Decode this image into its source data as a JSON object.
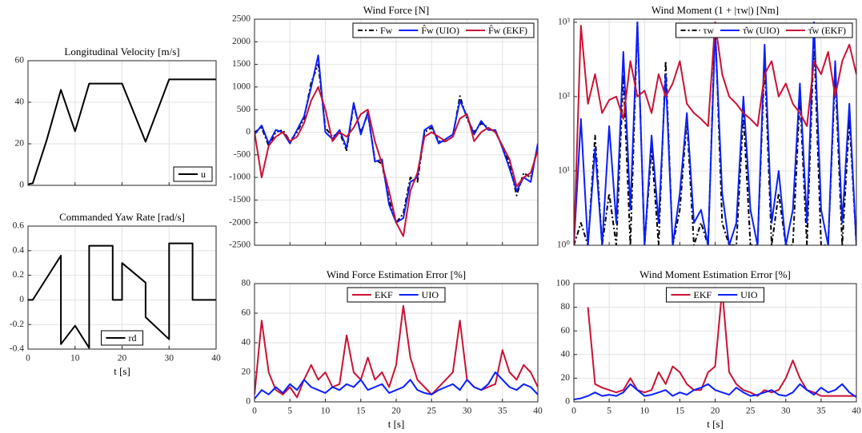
{
  "chart_data": [
    {
      "type": "line",
      "title": "Longitudinal Velocity [m/s]",
      "xlim": [
        0,
        40
      ],
      "xticks": [
        0,
        10,
        20,
        30,
        40
      ],
      "xtick_labels": false,
      "ylim": [
        0,
        60
      ],
      "yticks": [
        0,
        20,
        40,
        60
      ],
      "grid": true,
      "legend": "lower right",
      "x": [
        0,
        1,
        4,
        7,
        10,
        13,
        20,
        25,
        30,
        40
      ],
      "series": [
        {
          "name": "u",
          "color": "#000000",
          "values": [
            0.5,
            1,
            22,
            46,
            26,
            49,
            49,
            21,
            51,
            51
          ]
        }
      ]
    },
    {
      "type": "line",
      "title": "Commanded Yaw Rate [rad/s]",
      "xlabel": "t [s]",
      "xlim": [
        0,
        40
      ],
      "xticks": [
        0,
        10,
        20,
        30,
        40
      ],
      "ylim": [
        -0.4,
        0.6
      ],
      "yticks": [
        -0.4,
        -0.2,
        0,
        0.2,
        0.4,
        0.6
      ],
      "grid": true,
      "legend": "lower center",
      "x": [
        0,
        1,
        7,
        7,
        10,
        13,
        13,
        18,
        18,
        20,
        20,
        25,
        25,
        30,
        30,
        35,
        35,
        40
      ],
      "series": [
        {
          "name": "rd",
          "color": "#000000",
          "values": [
            0,
            0,
            0.36,
            -0.36,
            -0.21,
            -0.39,
            0.44,
            0.44,
            0,
            0,
            0.3,
            0.14,
            -0.14,
            -0.32,
            0.46,
            0.46,
            0,
            0
          ]
        }
      ]
    },
    {
      "type": "line",
      "title": "Wind Force [N]",
      "xlim": [
        0,
        40
      ],
      "xticks": [
        0,
        5,
        10,
        15,
        20,
        25,
        30,
        35,
        40
      ],
      "xtick_labels": false,
      "ylim": [
        -2500,
        2500
      ],
      "yticks": [
        -2500,
        -2000,
        -1500,
        -1000,
        -500,
        0,
        500,
        1000,
        1500,
        2000,
        2500
      ],
      "grid": true,
      "legend": "upper right",
      "x": [
        0,
        1,
        2,
        3,
        4,
        5,
        6,
        7,
        8,
        9,
        10,
        11,
        12,
        13,
        14,
        15,
        16,
        17,
        18,
        19,
        20,
        21,
        22,
        23,
        24,
        25,
        26,
        27,
        28,
        29,
        30,
        31,
        32,
        33,
        34,
        35,
        36,
        37,
        38,
        39,
        40
      ],
      "series": [
        {
          "name": "Fw",
          "color": "#000000",
          "dashed": true,
          "values": [
            0,
            100,
            -300,
            0,
            50,
            -200,
            0,
            300,
            1100,
            1500,
            100,
            -100,
            0,
            -400,
            600,
            0,
            400,
            -600,
            -700,
            -1500,
            -2000,
            -1800,
            -1000,
            -1100,
            0,
            100,
            -200,
            -200,
            -100,
            800,
            300,
            0,
            200,
            100,
            0,
            -300,
            -700,
            -1400,
            -900,
            -1000,
            -300
          ]
        },
        {
          "name": "F̂w (UIO)",
          "color": "#0a1fff",
          "values": [
            -50,
            150,
            -250,
            50,
            0,
            -250,
            50,
            350,
            1000,
            1700,
            0,
            -150,
            50,
            -350,
            650,
            -50,
            450,
            -650,
            -600,
            -1600,
            -2000,
            -1900,
            -1100,
            -1000,
            50,
            150,
            -250,
            -150,
            -50,
            700,
            350,
            -50,
            250,
            50,
            50,
            -350,
            -800,
            -1300,
            -1000,
            -1100,
            -250
          ]
        },
        {
          "name": "F̂w (EKF)",
          "color": "#cc1133",
          "values": [
            0,
            -1000,
            -300,
            -100,
            0,
            -200,
            -100,
            200,
            700,
            1000,
            500,
            -200,
            0,
            -100,
            100,
            400,
            500,
            -200,
            -700,
            -1300,
            -2000,
            -2300,
            -1300,
            -900,
            -100,
            0,
            -100,
            -200,
            -100,
            300,
            400,
            -200,
            0,
            100,
            0,
            -300,
            -600,
            -1200,
            -1000,
            -900,
            -400
          ]
        }
      ]
    },
    {
      "type": "line",
      "title": "Wind Moment (1 + |τw|) [Nm]",
      "log_y": true,
      "xlim": [
        0,
        40
      ],
      "xticks": [
        0,
        5,
        10,
        15,
        20,
        25,
        30,
        35,
        40
      ],
      "xtick_labels": false,
      "ylim": [
        1,
        1100
      ],
      "yticks": [
        {
          "value": 1,
          "label": "10⁰"
        },
        {
          "value": 10,
          "label": "10¹"
        },
        {
          "value": 100,
          "label": "10²"
        },
        {
          "value": 1000,
          "label": "10³"
        }
      ],
      "grid": true,
      "legend": "upper right",
      "x": [
        0,
        1,
        2,
        3,
        4,
        5,
        6,
        7,
        8,
        9,
        10,
        11,
        12,
        13,
        14,
        15,
        16,
        17,
        18,
        19,
        20,
        21,
        22,
        23,
        24,
        25,
        26,
        27,
        28,
        29,
        30,
        31,
        32,
        33,
        34,
        35,
        36,
        37,
        38,
        39,
        40
      ],
      "series": [
        {
          "name": "τw",
          "color": "#000000",
          "dashed": true,
          "values": [
            1,
            2,
            1,
            30,
            1,
            5,
            1,
            200,
            1,
            1000,
            1,
            20,
            1,
            300,
            1,
            3,
            50,
            1,
            2,
            1,
            1000,
            2,
            1,
            1,
            60,
            1,
            1,
            300,
            1,
            5,
            1,
            1,
            100,
            1,
            600,
            1,
            1,
            200,
            1,
            50,
            1
          ]
        },
        {
          "name": "τ̂w (UIO)",
          "color": "#0a1fff",
          "values": [
            1,
            50,
            1,
            20,
            1,
            40,
            2,
            400,
            3,
            1000,
            1,
            30,
            2,
            200,
            1,
            5,
            60,
            2,
            3,
            1,
            800,
            5,
            1,
            2,
            100,
            3,
            1,
            500,
            2,
            10,
            1,
            3,
            150,
            2,
            1000,
            3,
            1,
            300,
            2,
            80,
            1
          ]
        },
        {
          "name": "τ̂w (EKF)",
          "color": "#cc1133",
          "values": [
            1,
            900,
            80,
            200,
            60,
            90,
            100,
            50,
            300,
            100,
            120,
            60,
            200,
            100,
            150,
            300,
            80,
            60,
            50,
            40,
            1000,
            200,
            100,
            80,
            60,
            50,
            40,
            200,
            300,
            100,
            150,
            80,
            60,
            40,
            300,
            200,
            400,
            100,
            300,
            500,
            200
          ]
        }
      ]
    },
    {
      "type": "line",
      "title": "Wind Force Estimation Error [%]",
      "xlabel": "t [s]",
      "xlim": [
        0,
        40
      ],
      "xticks": [
        0,
        5,
        10,
        15,
        20,
        25,
        30,
        35,
        40
      ],
      "ylim": [
        0,
        80
      ],
      "yticks": [
        0,
        20,
        40,
        60,
        80
      ],
      "grid": true,
      "legend": "upper center",
      "x": [
        0,
        1,
        2,
        3,
        4,
        5,
        6,
        7,
        8,
        9,
        10,
        11,
        12,
        13,
        14,
        15,
        16,
        17,
        18,
        19,
        20,
        21,
        22,
        23,
        24,
        25,
        26,
        27,
        28,
        29,
        30,
        31,
        32,
        33,
        34,
        35,
        36,
        37,
        38,
        39,
        40
      ],
      "series": [
        {
          "name": "EKF",
          "color": "#cc1133",
          "values": [
            5,
            55,
            20,
            8,
            5,
            10,
            3,
            15,
            25,
            15,
            20,
            10,
            12,
            45,
            20,
            15,
            30,
            15,
            20,
            10,
            25,
            65,
            30,
            15,
            10,
            5,
            10,
            15,
            20,
            55,
            15,
            10,
            8,
            10,
            12,
            35,
            20,
            15,
            25,
            20,
            10
          ]
        },
        {
          "name": "UIO",
          "color": "#0a1fff",
          "values": [
            2,
            8,
            5,
            10,
            6,
            12,
            8,
            15,
            10,
            8,
            6,
            10,
            8,
            12,
            10,
            15,
            8,
            10,
            12,
            6,
            8,
            10,
            15,
            8,
            6,
            5,
            8,
            10,
            12,
            8,
            15,
            10,
            8,
            12,
            20,
            15,
            10,
            8,
            12,
            10,
            5
          ]
        }
      ]
    },
    {
      "type": "line",
      "title": "Wind Moment Estimation Error [%]",
      "xlabel": "t [s]",
      "xlim": [
        0,
        40
      ],
      "xticks": [
        0,
        5,
        10,
        15,
        20,
        25,
        30,
        35,
        40
      ],
      "ylim": [
        0,
        100
      ],
      "yticks": [
        0,
        20,
        40,
        60,
        80,
        100
      ],
      "grid": true,
      "legend": "upper center",
      "x": [
        0,
        1,
        2,
        3,
        4,
        5,
        6,
        7,
        8,
        9,
        10,
        11,
        12,
        13,
        14,
        15,
        16,
        17,
        18,
        19,
        20,
        21,
        22,
        23,
        24,
        25,
        26,
        27,
        28,
        29,
        30,
        31,
        32,
        33,
        34,
        35,
        36,
        37,
        38,
        39,
        40
      ],
      "series": [
        {
          "name": "EKF",
          "color": "#cc1133",
          "values": [
            null,
            null,
            80,
            15,
            12,
            10,
            8,
            10,
            20,
            10,
            8,
            10,
            25,
            15,
            30,
            25,
            15,
            10,
            10,
            25,
            30,
            95,
            25,
            15,
            10,
            8,
            5,
            10,
            8,
            10,
            20,
            35,
            20,
            10,
            8,
            5,
            5,
            5,
            5,
            5,
            5
          ]
        },
        {
          "name": "UIO",
          "color": "#0a1fff",
          "values": [
            2,
            3,
            5,
            8,
            5,
            6,
            5,
            8,
            15,
            10,
            5,
            6,
            8,
            10,
            5,
            8,
            6,
            10,
            12,
            15,
            10,
            8,
            6,
            12,
            8,
            5,
            6,
            8,
            10,
            6,
            5,
            8,
            15,
            10,
            6,
            12,
            8,
            10,
            15,
            8,
            4
          ]
        }
      ]
    }
  ]
}
